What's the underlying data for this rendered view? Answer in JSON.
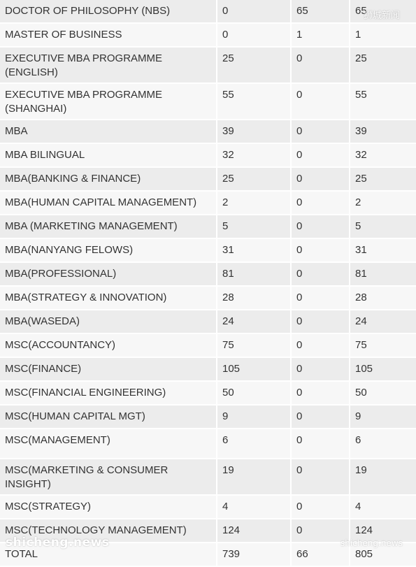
{
  "rows": [
    {
      "program": "DOCTOR OF PHILOSOPHY (NBS)",
      "c1": "0",
      "c2": "65",
      "c3": "65"
    },
    {
      "program": "MASTER OF BUSINESS",
      "c1": "0",
      "c2": "1",
      "c3": "1"
    },
    {
      "program": "EXECUTIVE MBA PROGRAMME (ENGLISH)",
      "c1": "25",
      "c2": "0",
      "c3": "25"
    },
    {
      "program": "EXECUTIVE MBA PROGRAMME (SHANGHAI)",
      "c1": "55",
      "c2": "0",
      "c3": "55"
    },
    {
      "program": "MBA",
      "c1": "39",
      "c2": "0",
      "c3": "39"
    },
    {
      "program": "MBA BILINGUAL",
      "c1": "32",
      "c2": "0",
      "c3": "32"
    },
    {
      "program": "MBA(BANKING & FINANCE)",
      "c1": "25",
      "c2": "0",
      "c3": "25"
    },
    {
      "program": "MBA(HUMAN CAPITAL MANAGEMENT)",
      "c1": "2",
      "c2": "0",
      "c3": "2"
    },
    {
      "program": "MBA (MARKETING MANAGEMENT)",
      "c1": "5",
      "c2": "0",
      "c3": "5"
    },
    {
      "program": "MBA(NANYANG FELOWS)",
      "c1": "31",
      "c2": "0",
      "c3": "31"
    },
    {
      "program": "MBA(PROFESSIONAL)",
      "c1": "81",
      "c2": "0",
      "c3": "81"
    },
    {
      "program": "MBA(STRATEGY & INNOVATION)",
      "c1": "28",
      "c2": "0",
      "c3": "28"
    },
    {
      "program": "MBA(WASEDA)",
      "c1": "24",
      "c2": "0",
      "c3": "24"
    },
    {
      "program": "MSC(ACCOUNTANCY)",
      "c1": "75",
      "c2": "0",
      "c3": "75"
    },
    {
      "program": "MSC(FINANCE)",
      "c1": "105",
      "c2": "0",
      "c3": "105"
    },
    {
      "program": "MSC(FINANCIAL ENGINEERING)",
      "c1": "50",
      "c2": "0",
      "c3": "50"
    },
    {
      "program": "MSC(HUMAN CAPITAL MGT)",
      "c1": "9",
      "c2": "0",
      "c3": "9"
    },
    {
      "program": "MSC(MANAGEMENT)",
      "c1": "6",
      "c2": "0",
      "c3": "6"
    },
    {
      "program": "MSC(MARKETING & CONSUMER INSIGHT)",
      "c1": "19",
      "c2": "0",
      "c3": "19"
    },
    {
      "program": "MSC(STRATEGY)",
      "c1": "4",
      "c2": "0",
      "c3": "4"
    },
    {
      "program": "MSC(TECHNOLOGY MANAGEMENT)",
      "c1": "124",
      "c2": "0",
      "c3": "124"
    },
    {
      "program": "TOTAL",
      "c1": "739",
      "c2": "66",
      "c3": "805"
    }
  ],
  "watermarks": {
    "top_right": "狮城新闻",
    "bottom_left": "shicheng.news",
    "bottom_right": "shicheng.news"
  }
}
